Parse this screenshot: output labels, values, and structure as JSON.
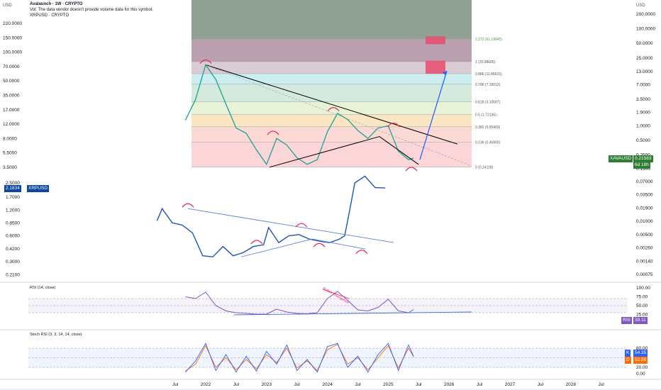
{
  "header": {
    "title": "Avalaunch · 1W · CRYPTO",
    "vol_note": "Vol: The data vendor doesn't provide volume data for this symbol.",
    "overlay_symbol": "XRPUSD · CRYPTO",
    "currency_left": "USD",
    "currency_right": "USD"
  },
  "colors": {
    "main_line": "#0d47a1",
    "xrp_line": "#1e53b5",
    "trend_line": "#000000",
    "projection": "#2962ff",
    "marker": "#e91e63",
    "rsi_line": "#7e57c2",
    "k_line": "#2962ff",
    "d_line": "#ff6d00",
    "up": "#26a69a",
    "down": "#ef5350",
    "tag_green": "#2e7d32",
    "tag_blue": "#0d47a1"
  },
  "chart_data": [
    {
      "type": "line",
      "name": "XAVAUSD weekly price with Fibonacci retracement",
      "x_ticks": [
        "Jul",
        "2022",
        "Jul",
        "2023",
        "Jul",
        "2024",
        "Jul",
        "2025",
        "Jul",
        "2026",
        "Jul",
        "2027",
        "Jul",
        "2028",
        "Jul"
      ],
      "x": [
        "2021-09",
        "2021-11",
        "2022-01",
        "2022-03",
        "2022-05",
        "2022-07",
        "2022-09",
        "2022-11",
        "2023-01",
        "2023-03",
        "2023-05",
        "2023-07",
        "2023-09",
        "2023-11",
        "2024-01",
        "2024-03",
        "2024-05",
        "2024-07",
        "2024-09",
        "2024-11",
        "2025-01",
        "2025-03",
        "2025-05",
        "2025-06"
      ],
      "values": [
        1.3,
        3.5,
        18.0,
        9.0,
        2.8,
        0.9,
        0.7,
        0.32,
        0.16,
        0.55,
        0.4,
        0.22,
        0.16,
        0.2,
        0.75,
        1.8,
        1.35,
        0.8,
        0.55,
        0.9,
        1.0,
        0.3,
        0.2,
        0.2158
      ],
      "current_price": "0.21583",
      "current_label": "XAVAUSD",
      "countdown": "6d 18h",
      "y_ticks_right": [
        "200.0000",
        "100.0000",
        "50.0000",
        "25.0000",
        "13.0000",
        "7.0000",
        "3.5000",
        "1.9000",
        "1.0000",
        "0.5000",
        "0.2500",
        "0.1300"
      ],
      "y_ticks_left": [
        "220.0000",
        "150.0000",
        "100.0000",
        "70.0000",
        "50.0000",
        "35.0000",
        "17.0000",
        "12.0000",
        "8.0000",
        "5.5000",
        "3.5000"
      ],
      "fib_levels": [
        "1.272 (61.19845)",
        "1 (20.98605)",
        "0.886 (11.86615)",
        "0.786 (7.19012)",
        "0.618 (3.10587)",
        "0.5 (1.72136)",
        "0.382 (0.95403)",
        "0.236 (0.45905)",
        "0 (0.14118)"
      ],
      "fib_colors": [
        "#7d8f80",
        "#b497a6",
        "#d5c7cf",
        "#c8ecef",
        "#cfe8d8",
        "#e6f1d3",
        "#fbe3bd",
        "#fbd5d0",
        "#fbd0d3"
      ]
    },
    {
      "type": "line",
      "name": "XRPUSD",
      "current_label": "XRPUSD",
      "current_price": "2.1834",
      "x": [
        "2021-09",
        "2021-10",
        "2021-12",
        "2022-02",
        "2022-04",
        "2022-06",
        "2022-08",
        "2022-10",
        "2022-12",
        "2023-02",
        "2023-04",
        "2023-06",
        "2023-07",
        "2023-09",
        "2023-11",
        "2024-01",
        "2024-03",
        "2024-05",
        "2024-07",
        "2024-09",
        "2024-10",
        "2024-11",
        "2024-12",
        "2025-02",
        "2025-04",
        "2025-06"
      ],
      "values": [
        0.9,
        1.25,
        0.85,
        0.8,
        0.65,
        0.35,
        0.34,
        0.45,
        0.35,
        0.38,
        0.45,
        0.47,
        0.75,
        0.5,
        0.6,
        0.62,
        0.55,
        0.52,
        0.5,
        0.55,
        0.6,
        1.2,
        2.5,
        3.0,
        2.2,
        2.18
      ],
      "y_ticks_left": [
        "2.5000",
        "1.7000",
        "1.2000",
        "0.8500",
        "0.6000",
        "0.4200",
        "0.3000",
        "0.2100"
      ],
      "y_ticks_right": [
        "0.07000",
        "0.03500",
        "0.01900",
        "0.01000",
        "0.00500",
        "0.00260",
        "0.00140",
        "0.00075"
      ]
    },
    {
      "type": "line",
      "name": "RSI (14, close)",
      "label": "RSI (14, close)",
      "current": "39.11",
      "annotation": "Bullish Divergence",
      "y_ticks": [
        "100.00",
        "75.00",
        "50.00",
        "25.00"
      ],
      "x": [
        "2021-09",
        "2021-11",
        "2022-01",
        "2022-03",
        "2022-05",
        "2022-07",
        "2022-09",
        "2022-11",
        "2023-01",
        "2023-03",
        "2023-05",
        "2023-07",
        "2023-09",
        "2023-11",
        "2024-01",
        "2024-03",
        "2024-05",
        "2024-07",
        "2024-09",
        "2024-11",
        "2025-01",
        "2025-03",
        "2025-05",
        "2025-06"
      ],
      "values": [
        75,
        70,
        88,
        50,
        35,
        30,
        28,
        26,
        26,
        40,
        32,
        28,
        27,
        30,
        70,
        90,
        65,
        38,
        35,
        45,
        68,
        35,
        30,
        39
      ]
    },
    {
      "type": "line",
      "name": "Stoch RSI (3, 3, 14, 14, close)",
      "label": "Stoch RSI (3, 3, 14, 14, close)",
      "k_label": "K",
      "k_value": "54.35",
      "d_label": "D",
      "d_value": "52.86",
      "y_ticks": [
        "80.00",
        "50.00",
        "20.00",
        "0.00"
      ],
      "x": [
        "2021-09",
        "2021-11",
        "2022-01",
        "2022-03",
        "2022-05",
        "2022-07",
        "2022-09",
        "2022-11",
        "2023-01",
        "2023-03",
        "2023-05",
        "2023-07",
        "2023-09",
        "2023-11",
        "2024-01",
        "2024-03",
        "2024-05",
        "2024-07",
        "2024-09",
        "2024-11",
        "2025-01",
        "2025-03",
        "2025-05",
        "2025-06"
      ],
      "k": [
        5,
        40,
        95,
        10,
        60,
        5,
        55,
        8,
        70,
        30,
        90,
        10,
        45,
        5,
        85,
        95,
        20,
        55,
        5,
        60,
        95,
        10,
        90,
        54
      ],
      "d": [
        8,
        30,
        88,
        20,
        50,
        12,
        45,
        15,
        60,
        35,
        80,
        18,
        40,
        10,
        75,
        92,
        30,
        50,
        12,
        50,
        88,
        18,
        80,
        53
      ]
    }
  ]
}
